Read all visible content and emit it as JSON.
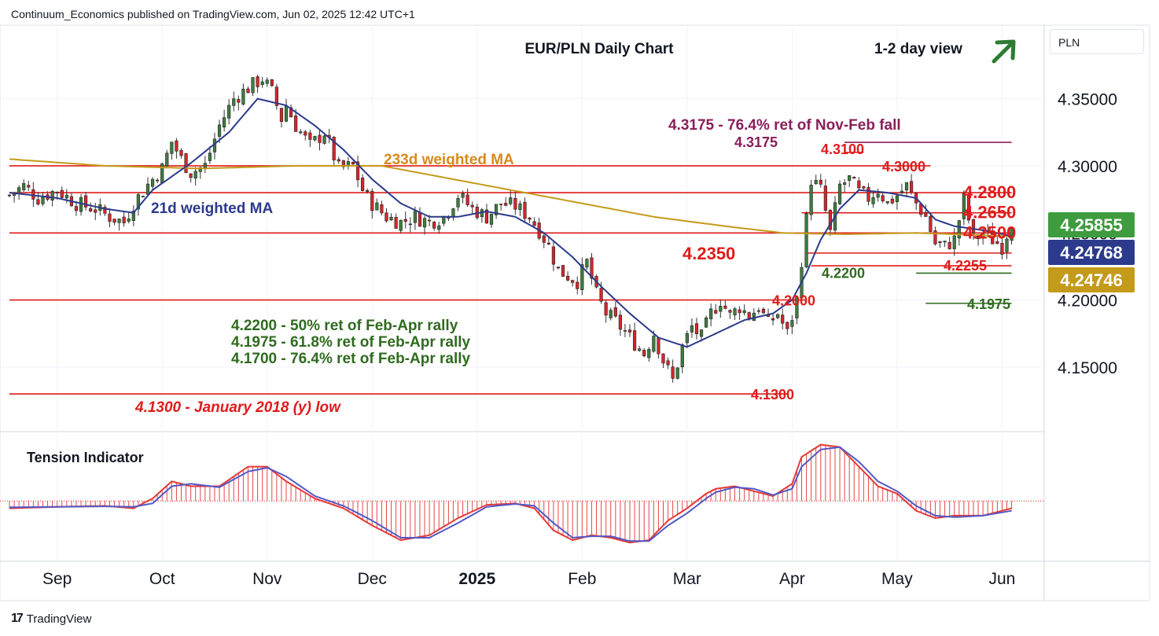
{
  "header": {
    "publisher_line": "Continuum_Economics published on TradingView.com, Jun 02, 2025 12:42 UTC+1"
  },
  "footer": {
    "brand": "TradingView",
    "brand_mark": "17"
  },
  "currency_label": "PLN",
  "colors": {
    "up": "#3e7d3e",
    "down": "#d7262b",
    "ma21": "#2c3a8c",
    "ma233": "#c49a1a",
    "level": "#e01b1b",
    "fib": "#2f6b1f",
    "retrace": "#8a1e5a",
    "arrow": "#2e7d32"
  },
  "chart_data": {
    "type": "candlestick",
    "title": "EUR/PLN Daily Chart",
    "view": "1-2 day view",
    "view_direction": "up",
    "y_axis": {
      "ylim": [
        4.1025,
        4.4025
      ],
      "ticks": [
        4.15,
        4.2,
        4.25,
        4.3,
        4.35
      ],
      "tick_labels": [
        "4.15000",
        "4.20000",
        "4.25000",
        "4.30000",
        "4.35000"
      ]
    },
    "x_axis": {
      "labels": [
        "Sep",
        "Oct",
        "Nov",
        "Dec",
        "2025",
        "Feb",
        "Mar",
        "Apr",
        "May",
        "Jun"
      ],
      "label_day_index": [
        10,
        32,
        54,
        76,
        98,
        120,
        142,
        164,
        186,
        208
      ]
    },
    "price_badges": [
      {
        "value": "4.25855",
        "color": "#3e9b3e"
      },
      {
        "value": "4.24768",
        "color": "#2c3a8c"
      },
      {
        "value": "4.24746",
        "color": "#c49a1a"
      }
    ],
    "horizontal_levels": [
      {
        "price": 4.3175,
        "label": "4.3175",
        "from_day": 175,
        "to_day": 210,
        "color": "#8a1e5a"
      },
      {
        "price": 4.31,
        "label": "4.3100",
        "from_day": 175,
        "to_day": 179,
        "color": "#e01b1b"
      },
      {
        "price": 4.3,
        "label": "4.3000",
        "from_day": 0,
        "to_day": 193,
        "color": "#e01b1b"
      },
      {
        "price": 4.28,
        "label": "4.2800",
        "from_day": 0,
        "to_day": 210,
        "color": "#e01b1b"
      },
      {
        "price": 4.265,
        "label": "4.2650",
        "from_day": 166,
        "to_day": 210,
        "color": "#e01b1b"
      },
      {
        "price": 4.25,
        "label": "4.2500",
        "from_day": 0,
        "to_day": 210,
        "color": "#e01b1b"
      },
      {
        "price": 4.235,
        "label": "4.2350",
        "from_day": 167,
        "to_day": 210,
        "color": "#e01b1b"
      },
      {
        "price": 4.2255,
        "label": "4.2255",
        "from_day": 168,
        "to_day": 210,
        "color": "#e01b1b"
      },
      {
        "price": 4.22,
        "label": "4.2200",
        "from_day": 190,
        "to_day": 210,
        "color": "#2f6b1f"
      },
      {
        "price": 4.2,
        "label": "4.2000",
        "from_day": 0,
        "to_day": 167,
        "color": "#e01b1b"
      },
      {
        "price": 4.1975,
        "label": "4.1975",
        "from_day": 192,
        "to_day": 210,
        "color": "#2f6b1f"
      },
      {
        "price": 4.13,
        "label": "4.1300",
        "from_day": 0,
        "to_day": 163,
        "color": "#e01b1b"
      }
    ],
    "annotations": {
      "retrace_note": "4.3175 - 76.4% ret of Nov-Feb fall",
      "ma233_label": "233d weighted MA",
      "ma21_label": "21d weighted MA",
      "fib_notes": [
        "4.2200 - 50% ret of Feb-Apr rally",
        "4.1975 - 61.8% ret of Feb-Apr rally",
        "4.1700 - 76.4% ret of Feb-Apr rally"
      ],
      "low_note": "4.1300 - January 2018 (y) low"
    },
    "close_path": [
      [
        0,
        4.278
      ],
      [
        3,
        4.285
      ],
      [
        6,
        4.276
      ],
      [
        10,
        4.282
      ],
      [
        14,
        4.272
      ],
      [
        18,
        4.268
      ],
      [
        21,
        4.262
      ],
      [
        24,
        4.258
      ],
      [
        26,
        4.272
      ],
      [
        29,
        4.286
      ],
      [
        32,
        4.298
      ],
      [
        34,
        4.318
      ],
      [
        36,
        4.305
      ],
      [
        38,
        4.295
      ],
      [
        41,
        4.3
      ],
      [
        44,
        4.33
      ],
      [
        47,
        4.35
      ],
      [
        50,
        4.358
      ],
      [
        53,
        4.365
      ],
      [
        55,
        4.355
      ],
      [
        57,
        4.335
      ],
      [
        58,
        4.345
      ],
      [
        60,
        4.33
      ],
      [
        63,
        4.315
      ],
      [
        66,
        4.325
      ],
      [
        69,
        4.298
      ],
      [
        72,
        4.3
      ],
      [
        74,
        4.282
      ],
      [
        76,
        4.272
      ],
      [
        79,
        4.262
      ],
      [
        82,
        4.258
      ],
      [
        85,
        4.262
      ],
      [
        88,
        4.258
      ],
      [
        91,
        4.262
      ],
      [
        94,
        4.278
      ],
      [
        97,
        4.268
      ],
      [
        100,
        4.262
      ],
      [
        103,
        4.272
      ],
      [
        106,
        4.27
      ],
      [
        109,
        4.262
      ],
      [
        111,
        4.252
      ],
      [
        113,
        4.24
      ],
      [
        115,
        4.222
      ],
      [
        117,
        4.218
      ],
      [
        119,
        4.214
      ],
      [
        121,
        4.228
      ],
      [
        123,
        4.204
      ],
      [
        125,
        4.19
      ],
      [
        127,
        4.184
      ],
      [
        129,
        4.176
      ],
      [
        131,
        4.168
      ],
      [
        133,
        4.16
      ],
      [
        135,
        4.175
      ],
      [
        137,
        4.155
      ],
      [
        139,
        4.14
      ],
      [
        141,
        4.165
      ],
      [
        143,
        4.18
      ],
      [
        145,
        4.172
      ],
      [
        147,
        4.19
      ],
      [
        149,
        4.2
      ],
      [
        151,
        4.188
      ],
      [
        153,
        4.195
      ],
      [
        155,
        4.188
      ],
      [
        157,
        4.195
      ],
      [
        159,
        4.182
      ],
      [
        161,
        4.19
      ],
      [
        163,
        4.175
      ],
      [
        165,
        4.2
      ],
      [
        166,
        4.23
      ],
      [
        167,
        4.26
      ],
      [
        168,
        4.29
      ],
      [
        170,
        4.282
      ],
      [
        172,
        4.25
      ],
      [
        174,
        4.285
      ],
      [
        176,
        4.29
      ],
      [
        178,
        4.28
      ],
      [
        180,
        4.276
      ],
      [
        182,
        4.282
      ],
      [
        184,
        4.272
      ],
      [
        186,
        4.278
      ],
      [
        188,
        4.285
      ],
      [
        190,
        4.272
      ],
      [
        192,
        4.262
      ],
      [
        194,
        4.242
      ],
      [
        196,
        4.24
      ],
      [
        198,
        4.245
      ],
      [
        200,
        4.275
      ],
      [
        202,
        4.245
      ],
      [
        204,
        4.25
      ],
      [
        206,
        4.245
      ],
      [
        208,
        4.24
      ],
      [
        210,
        4.2585
      ]
    ],
    "ma21_path": [
      [
        0,
        4.28
      ],
      [
        10,
        4.276
      ],
      [
        20,
        4.268
      ],
      [
        26,
        4.265
      ],
      [
        30,
        4.282
      ],
      [
        38,
        4.302
      ],
      [
        46,
        4.325
      ],
      [
        52,
        4.35
      ],
      [
        58,
        4.345
      ],
      [
        64,
        4.33
      ],
      [
        70,
        4.312
      ],
      [
        76,
        4.29
      ],
      [
        82,
        4.272
      ],
      [
        88,
        4.262
      ],
      [
        94,
        4.262
      ],
      [
        100,
        4.266
      ],
      [
        106,
        4.262
      ],
      [
        112,
        4.25
      ],
      [
        118,
        4.232
      ],
      [
        124,
        4.21
      ],
      [
        130,
        4.19
      ],
      [
        136,
        4.172
      ],
      [
        142,
        4.165
      ],
      [
        148,
        4.175
      ],
      [
        154,
        4.185
      ],
      [
        160,
        4.19
      ],
      [
        164,
        4.2
      ],
      [
        167,
        4.22
      ],
      [
        170,
        4.245
      ],
      [
        174,
        4.268
      ],
      [
        178,
        4.282
      ],
      [
        184,
        4.28
      ],
      [
        190,
        4.276
      ],
      [
        194,
        4.26
      ],
      [
        198,
        4.255
      ],
      [
        204,
        4.252
      ],
      [
        210,
        4.2477
      ]
    ],
    "ma233_path": [
      [
        0,
        4.305
      ],
      [
        20,
        4.3
      ],
      [
        40,
        4.298
      ],
      [
        60,
        4.3
      ],
      [
        78,
        4.3
      ],
      [
        90,
        4.292
      ],
      [
        105,
        4.282
      ],
      [
        120,
        4.272
      ],
      [
        135,
        4.262
      ],
      [
        150,
        4.255
      ],
      [
        162,
        4.25
      ],
      [
        175,
        4.249
      ],
      [
        190,
        4.25
      ],
      [
        210,
        4.2475
      ]
    ],
    "tension_indicator": {
      "title": "Tension Indicator",
      "zero_line": 0,
      "ylim": [
        -1.2,
        1.4
      ],
      "hist_path": [
        [
          0,
          -0.15
        ],
        [
          10,
          -0.12
        ],
        [
          20,
          -0.1
        ],
        [
          26,
          -0.15
        ],
        [
          30,
          0.05
        ],
        [
          34,
          0.4
        ],
        [
          38,
          0.3
        ],
        [
          44,
          0.3
        ],
        [
          50,
          0.7
        ],
        [
          54,
          0.7
        ],
        [
          58,
          0.4
        ],
        [
          64,
          0.05
        ],
        [
          70,
          -0.15
        ],
        [
          76,
          -0.5
        ],
        [
          82,
          -0.8
        ],
        [
          88,
          -0.7
        ],
        [
          94,
          -0.35
        ],
        [
          100,
          -0.08
        ],
        [
          106,
          -0.05
        ],
        [
          110,
          -0.15
        ],
        [
          114,
          -0.6
        ],
        [
          118,
          -0.8
        ],
        [
          122,
          -0.7
        ],
        [
          126,
          -0.75
        ],
        [
          130,
          -0.85
        ],
        [
          134,
          -0.8
        ],
        [
          138,
          -0.4
        ],
        [
          142,
          -0.15
        ],
        [
          146,
          0.15
        ],
        [
          148,
          0.25
        ],
        [
          152,
          0.3
        ],
        [
          156,
          0.2
        ],
        [
          160,
          0.1
        ],
        [
          164,
          0.35
        ],
        [
          166,
          0.9
        ],
        [
          170,
          1.15
        ],
        [
          174,
          1.1
        ],
        [
          178,
          0.7
        ],
        [
          182,
          0.3
        ],
        [
          186,
          0.15
        ],
        [
          190,
          -0.2
        ],
        [
          194,
          -0.35
        ],
        [
          198,
          -0.3
        ],
        [
          204,
          -0.3
        ],
        [
          210,
          -0.15
        ]
      ],
      "signal_path": [
        [
          0,
          -0.13
        ],
        [
          10,
          -0.12
        ],
        [
          20,
          -0.11
        ],
        [
          26,
          -0.12
        ],
        [
          30,
          -0.05
        ],
        [
          34,
          0.3
        ],
        [
          38,
          0.35
        ],
        [
          44,
          0.28
        ],
        [
          50,
          0.6
        ],
        [
          54,
          0.68
        ],
        [
          58,
          0.5
        ],
        [
          64,
          0.1
        ],
        [
          70,
          -0.1
        ],
        [
          76,
          -0.4
        ],
        [
          82,
          -0.75
        ],
        [
          88,
          -0.75
        ],
        [
          94,
          -0.45
        ],
        [
          100,
          -0.12
        ],
        [
          106,
          -0.06
        ],
        [
          110,
          -0.1
        ],
        [
          114,
          -0.45
        ],
        [
          118,
          -0.75
        ],
        [
          122,
          -0.72
        ],
        [
          126,
          -0.72
        ],
        [
          130,
          -0.82
        ],
        [
          134,
          -0.82
        ],
        [
          138,
          -0.5
        ],
        [
          142,
          -0.25
        ],
        [
          146,
          0.05
        ],
        [
          148,
          0.18
        ],
        [
          152,
          0.28
        ],
        [
          156,
          0.25
        ],
        [
          160,
          0.12
        ],
        [
          164,
          0.25
        ],
        [
          166,
          0.7
        ],
        [
          170,
          1.05
        ],
        [
          174,
          1.1
        ],
        [
          178,
          0.8
        ],
        [
          182,
          0.4
        ],
        [
          186,
          0.2
        ],
        [
          190,
          -0.1
        ],
        [
          194,
          -0.3
        ],
        [
          198,
          -0.33
        ],
        [
          204,
          -0.3
        ],
        [
          210,
          -0.2
        ]
      ]
    }
  }
}
